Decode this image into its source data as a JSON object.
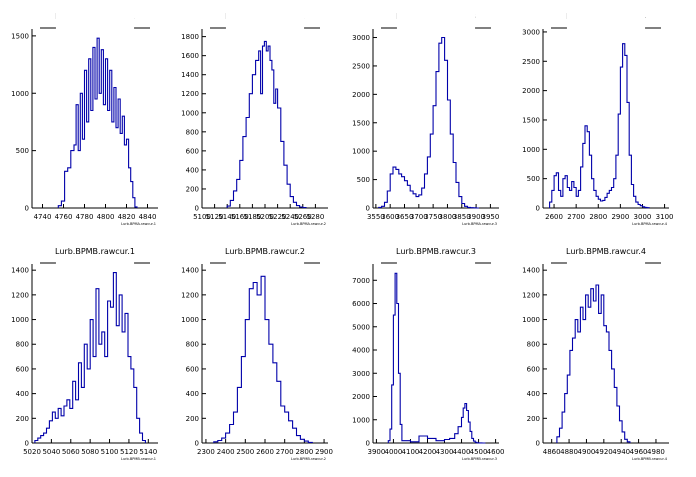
{
  "chart_data": [
    {
      "type": "histogram",
      "title": "Lurb.BPMA.rawcur.1",
      "stats_label": "Lurb.BPMA.rawcur.1",
      "xlim": [
        4730,
        4850
      ],
      "ylim": [
        0,
        1560
      ],
      "xticks": [
        "4740",
        "4760",
        "4780",
        "4800",
        "4820",
        "4840"
      ],
      "yticks": [
        "0",
        "500",
        "1000",
        "1500"
      ],
      "x": [
        4755,
        4758,
        4761,
        4764,
        4767,
        4770,
        4772,
        4774,
        4776,
        4778,
        4780,
        4782,
        4784,
        4786,
        4788,
        4790,
        4792,
        4794,
        4796,
        4798,
        4800,
        4802,
        4804,
        4806,
        4808,
        4810,
        4812,
        4814,
        4816,
        4818,
        4820,
        4822,
        4824,
        4826,
        4828
      ],
      "y": [
        20,
        60,
        320,
        350,
        500,
        550,
        900,
        500,
        1000,
        600,
        1200,
        750,
        1300,
        850,
        1400,
        950,
        1480,
        1000,
        1380,
        900,
        1300,
        850,
        1200,
        750,
        1050,
        700,
        950,
        650,
        800,
        550,
        600,
        350,
        230,
        90,
        10
      ]
    },
    {
      "type": "histogram",
      "title": "Lurb.BPMA.rawcur.2",
      "stats_label": "Lurb.BPMA.rawcur.2",
      "xlim": [
        5100,
        5300
      ],
      "ylim": [
        0,
        1880
      ],
      "xticks": [
        "5100",
        "5120",
        "5140",
        "5160",
        "5180",
        "5200",
        "5220",
        "5240",
        "5260",
        "5280"
      ],
      "yticks": [
        "0",
        "200",
        "400",
        "600",
        "800",
        "1000",
        "1200",
        "1400",
        "1600",
        "1800"
      ],
      "x": [
        5140,
        5145,
        5150,
        5155,
        5160,
        5165,
        5170,
        5175,
        5180,
        5185,
        5190,
        5193,
        5196,
        5199,
        5202,
        5205,
        5208,
        5211,
        5214,
        5217,
        5220,
        5225,
        5230,
        5235,
        5240,
        5245,
        5250,
        5255,
        5260
      ],
      "y": [
        20,
        80,
        180,
        300,
        500,
        750,
        950,
        1200,
        1400,
        1550,
        1650,
        1200,
        1700,
        1750,
        1650,
        1700,
        1550,
        1450,
        1100,
        1250,
        1050,
        700,
        450,
        250,
        120,
        60,
        25,
        10,
        5
      ]
    },
    {
      "type": "histogram",
      "title": "Lurb.BPMA.rawcur.3",
      "stats_label": "Lurb.BPMA.rawcur.3",
      "xlim": [
        3540,
        3980
      ],
      "ylim": [
        0,
        3150
      ],
      "xticks": [
        "3550",
        "3600",
        "3650",
        "3700",
        "3750",
        "3800",
        "3850",
        "3900",
        "3950"
      ],
      "yticks": [
        "0",
        "500",
        "1000",
        "1500",
        "2000",
        "2500",
        "3000"
      ],
      "x": [
        3560,
        3570,
        3580,
        3590,
        3600,
        3610,
        3620,
        3630,
        3640,
        3650,
        3660,
        3670,
        3680,
        3690,
        3700,
        3710,
        3720,
        3730,
        3740,
        3750,
        3760,
        3770,
        3780,
        3790,
        3800,
        3810,
        3820,
        3830,
        3840,
        3850,
        3860,
        3870,
        3880,
        3890,
        3900
      ],
      "y": [
        10,
        30,
        100,
        300,
        600,
        720,
        680,
        600,
        550,
        480,
        400,
        300,
        250,
        200,
        230,
        350,
        600,
        900,
        1300,
        1800,
        2400,
        2900,
        3000,
        2600,
        1900,
        1300,
        800,
        450,
        200,
        80,
        30,
        10,
        5,
        3,
        0
      ]
    },
    {
      "type": "histogram",
      "title": "Lurb.BPMA.rawcur.4",
      "stats_label": "Lurb.BPMA.rawcur.4",
      "xlim": [
        2550,
        3120
      ],
      "ylim": [
        0,
        3050
      ],
      "xticks": [
        "2600",
        "2700",
        "2800",
        "2900",
        "3000",
        "3100"
      ],
      "yticks": [
        "0",
        "500",
        "1000",
        "1500",
        "2000",
        "2500",
        "3000"
      ],
      "x": [
        2580,
        2590,
        2600,
        2610,
        2620,
        2630,
        2640,
        2650,
        2660,
        2670,
        2680,
        2690,
        2700,
        2710,
        2720,
        2730,
        2740,
        2750,
        2760,
        2770,
        2780,
        2790,
        2800,
        2810,
        2820,
        2830,
        2840,
        2850,
        2860,
        2870,
        2880,
        2890,
        2900,
        2910,
        2920,
        2930,
        2940,
        2950,
        2960,
        2970,
        2980,
        2990,
        3000,
        3010,
        3020
      ],
      "y": [
        100,
        300,
        550,
        600,
        300,
        200,
        500,
        550,
        350,
        300,
        450,
        350,
        200,
        300,
        700,
        1100,
        1400,
        1300,
        900,
        500,
        300,
        200,
        150,
        120,
        130,
        180,
        250,
        300,
        350,
        500,
        900,
        1600,
        2400,
        2800,
        2600,
        1800,
        900,
        400,
        200,
        100,
        60,
        40,
        20,
        10,
        5
      ]
    },
    {
      "type": "histogram",
      "title": "Lurb.BPMB.rawcur.1",
      "stats_label": "Lurb.BPMB.rawcur.1",
      "xlim": [
        5020,
        5150
      ],
      "ylim": [
        0,
        1450
      ],
      "xticks": [
        "5020",
        "5040",
        "5060",
        "5080",
        "5100",
        "5120",
        "5140"
      ],
      "yticks": [
        "0",
        "200",
        "400",
        "600",
        "800",
        "1000",
        "1200",
        "1400"
      ],
      "x": [
        5023,
        5026,
        5029,
        5032,
        5035,
        5038,
        5041,
        5044,
        5047,
        5050,
        5053,
        5056,
        5059,
        5062,
        5065,
        5068,
        5071,
        5074,
        5077,
        5080,
        5083,
        5086,
        5089,
        5092,
        5095,
        5098,
        5101,
        5104,
        5107,
        5110,
        5113,
        5116,
        5119,
        5122,
        5125,
        5128,
        5131,
        5134
      ],
      "y": [
        20,
        40,
        60,
        80,
        120,
        180,
        250,
        200,
        280,
        220,
        300,
        350,
        280,
        500,
        350,
        650,
        450,
        800,
        600,
        1000,
        700,
        1250,
        800,
        900,
        700,
        1150,
        1100,
        1380,
        950,
        1200,
        900,
        1050,
        700,
        600,
        450,
        200,
        80,
        20
      ]
    },
    {
      "type": "histogram",
      "title": "Lurb.BPMB.rawcur.2",
      "stats_label": "Lurb.BPMB.rawcur.2",
      "xlim": [
        2280,
        2920
      ],
      "ylim": [
        0,
        1450
      ],
      "xticks": [
        "2300",
        "2400",
        "2500",
        "2600",
        "2700",
        "2800",
        "2900"
      ],
      "yticks": [
        "0",
        "200",
        "400",
        "600",
        "800",
        "1000",
        "1200",
        "1400"
      ],
      "x": [
        2340,
        2360,
        2380,
        2400,
        2420,
        2440,
        2460,
        2480,
        2500,
        2520,
        2540,
        2560,
        2580,
        2600,
        2620,
        2640,
        2660,
        2680,
        2700,
        2720,
        2740,
        2760,
        2780,
        2800,
        2820
      ],
      "y": [
        10,
        20,
        40,
        80,
        150,
        250,
        450,
        700,
        1000,
        1250,
        1300,
        1200,
        1350,
        1000,
        800,
        650,
        500,
        300,
        250,
        180,
        120,
        60,
        30,
        15,
        5
      ]
    },
    {
      "type": "histogram",
      "title": "Lurb.BPMB.rawcur.3",
      "stats_label": "Lurb.BPMB.rawcur.3",
      "xlim": [
        3880,
        4620
      ],
      "ylim": [
        0,
        7700
      ],
      "xticks": [
        "3900",
        "4000",
        "4100",
        "4200",
        "4300",
        "4400",
        "4500",
        "4600"
      ],
      "yticks": [
        "0",
        "1000",
        "2000",
        "3000",
        "4000",
        "5000",
        "6000",
        "7000"
      ],
      "x": [
        3970,
        3980,
        3990,
        4000,
        4010,
        4020,
        4030,
        4040,
        4050,
        4100,
        4150,
        4200,
        4250,
        4300,
        4330,
        4360,
        4380,
        4400,
        4410,
        4420,
        4430,
        4440,
        4450,
        4460,
        4470,
        4480,
        4490,
        4500,
        4520
      ],
      "y": [
        100,
        600,
        2500,
        5500,
        7300,
        6000,
        3000,
        800,
        100,
        50,
        300,
        200,
        100,
        150,
        200,
        400,
        700,
        1100,
        1500,
        1700,
        1400,
        900,
        500,
        200,
        80,
        30,
        10,
        5,
        0
      ]
    },
    {
      "type": "histogram",
      "title": "Lurb.BPMB.rawcur.4",
      "stats_label": "Lurb.BPMB.rawcur.4",
      "xlim": [
        4850,
        4995
      ],
      "ylim": [
        0,
        1450
      ],
      "xticks": [
        "4860",
        "4880",
        "4900",
        "4920",
        "4940",
        "4960",
        "4980"
      ],
      "yticks": [
        "0",
        "200",
        "400",
        "600",
        "800",
        "1000",
        "1200",
        "1400"
      ],
      "x": [
        4866,
        4869,
        4872,
        4875,
        4878,
        4881,
        4884,
        4887,
        4890,
        4893,
        4896,
        4899,
        4902,
        4905,
        4908,
        4911,
        4914,
        4917,
        4920,
        4923,
        4926,
        4929,
        4932,
        4935,
        4938,
        4941,
        4944,
        4947
      ],
      "y": [
        50,
        120,
        250,
        400,
        550,
        750,
        850,
        1000,
        900,
        1100,
        1000,
        1200,
        1100,
        1250,
        1150,
        1280,
        1050,
        1200,
        950,
        900,
        750,
        600,
        450,
        300,
        180,
        90,
        30,
        10
      ]
    }
  ]
}
